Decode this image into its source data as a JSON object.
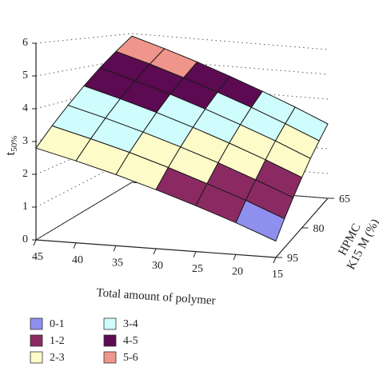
{
  "chart_data": {
    "type": "surface",
    "zlabel": {
      "main": "t",
      "sub": "50%"
    },
    "xlabel": "Total amount of polymer",
    "ylabel": [
      "HPMC",
      "K15 M (%)"
    ],
    "x": [
      45,
      40,
      35,
      30,
      25,
      20,
      15
    ],
    "y": [
      65,
      70,
      75,
      80,
      85,
      90,
      95
    ],
    "z": [
      [
        5.9,
        5.5,
        5.07,
        4.6,
        4.1,
        3.57,
        3.0
      ],
      [
        5.38,
        5.0,
        4.58,
        4.13,
        3.65,
        3.13,
        2.58
      ],
      [
        4.87,
        4.5,
        4.11,
        3.67,
        3.2,
        2.71,
        2.17
      ],
      [
        4.35,
        4.0,
        3.62,
        3.2,
        2.75,
        2.27,
        1.75
      ],
      [
        3.83,
        3.5,
        3.13,
        2.73,
        2.3,
        1.83,
        1.33
      ],
      [
        3.32,
        3.0,
        2.66,
        2.27,
        1.85,
        1.41,
        0.92
      ],
      [
        2.8,
        2.5,
        2.17,
        1.8,
        1.4,
        0.97,
        0.5
      ]
    ],
    "xlim": [
      45,
      15
    ],
    "xticks": [
      45,
      40,
      35,
      30,
      25,
      20,
      15
    ],
    "ylim": [
      65,
      95
    ],
    "yticks": [
      65,
      80,
      95
    ],
    "zlim": [
      0,
      6
    ],
    "zticks": [
      0,
      1,
      2,
      3,
      4,
      5,
      6
    ],
    "legend": [
      {
        "label": "0-1",
        "color": "#8f8ff0"
      },
      {
        "label": "1-2",
        "color": "#8b2a62"
      },
      {
        "label": "2-3",
        "color": "#fdfbc8"
      },
      {
        "label": "3-4",
        "color": "#cffcfc"
      },
      {
        "label": "4-5",
        "color": "#5c0a52"
      },
      {
        "label": "5-6",
        "color": "#f0958b"
      }
    ]
  }
}
